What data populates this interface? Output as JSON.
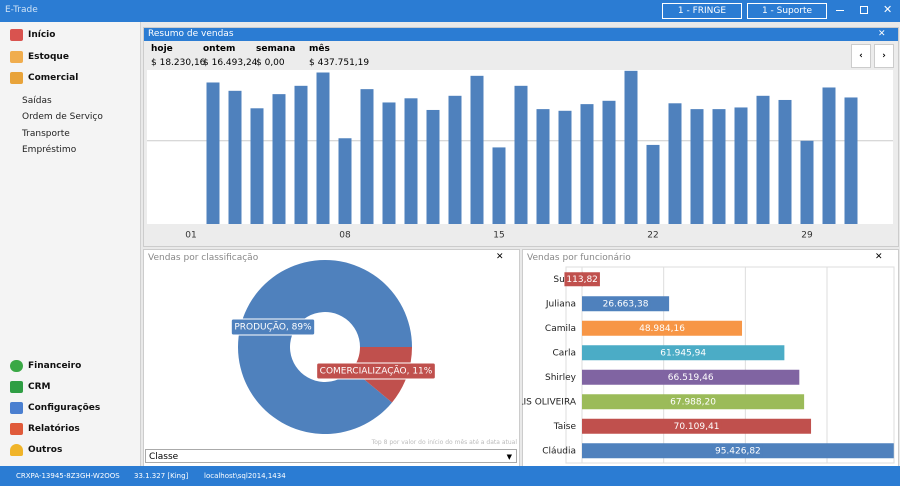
{
  "window": {
    "title": "E-Trade",
    "buttons": [
      "1 - FRINGE",
      "1 - Suporte"
    ]
  },
  "menu": {
    "top": [
      "Início",
      "Estoque",
      "Comercial"
    ],
    "submenu": [
      "Saídas",
      "Ordem de Serviço",
      "Transporte",
      "Empréstimo"
    ],
    "bottom": [
      "Financeiro",
      "CRM",
      "Configurações",
      "Relatórios",
      "Outros"
    ]
  },
  "summary": {
    "labels": [
      "hoje",
      "ontem",
      "semana",
      "mês"
    ],
    "values": [
      "$ 18.230,16",
      "$ 16.493,24",
      "$ 0,00",
      "$ 437.751,19"
    ]
  },
  "chart_data": [
    {
      "type": "bar",
      "title": "Resumo de vendas",
      "categories": [
        "01",
        null,
        null,
        null,
        null,
        null,
        null,
        "08",
        null,
        null,
        null,
        null,
        null,
        null,
        "15",
        null,
        null,
        null,
        null,
        null,
        null,
        "22",
        null,
        null,
        null,
        null,
        null,
        null,
        "29",
        null,
        null
      ],
      "values": [
        null,
        17000,
        16000,
        13900,
        15600,
        16600,
        18200,
        10300,
        16200,
        14600,
        15100,
        13700,
        15400,
        17800,
        9200,
        16600,
        13800,
        13600,
        14400,
        14800,
        18400,
        9500,
        14500,
        13800,
        13800,
        14000,
        15400,
        14900,
        10000,
        16400,
        15200
      ],
      "color": "#4f81bd",
      "ylim": [
        0,
        18500
      ],
      "yticks": [
        10000
      ]
    },
    {
      "type": "pie",
      "title": "Vendas por classificação",
      "categories": [
        "PRODUÇÃO",
        "COMERCIALIZAÇÃO"
      ],
      "values": [
        89,
        11
      ],
      "value_labels": [
        "PRODUÇÃO, 89%",
        "COMERCIALIZAÇÃO, 11%"
      ],
      "colors": [
        "#4f81bd",
        "#c0504d"
      ],
      "note": "Top 8 por valor do início do mês até a data atual",
      "selector": "Classe"
    },
    {
      "type": "hbar",
      "title": "Vendas por funcionário",
      "categories": [
        "Supo",
        "Juliana",
        "Camila",
        "Carla",
        "Shirley",
        "ELIS OLIVEIRA",
        "Taise",
        "Cláudia"
      ],
      "values": [
        113.82,
        26663.38,
        48984.16,
        61945.94,
        66519.46,
        67988.2,
        70109.41,
        95426.82
      ],
      "value_labels": [
        "113,82",
        "26.663,38",
        "48.984,16",
        "61.945,94",
        "66.519,46",
        "67.988,20",
        "70.109,41",
        "95.426,82"
      ],
      "colors": [
        "#c0504d",
        "#4f81bd",
        "#f79646",
        "#4bacc6",
        "#8064a2",
        "#9bbb59",
        "#c0504d",
        "#4f81bd"
      ],
      "xlim": [
        0,
        95500
      ],
      "xticks": [
        0,
        25000,
        50000,
        75000
      ]
    }
  ],
  "status": [
    "CRXPA-13945-8Z3GH-W2OOS",
    "33.1.327 [King]",
    "localhost\\sql2014,1434"
  ]
}
